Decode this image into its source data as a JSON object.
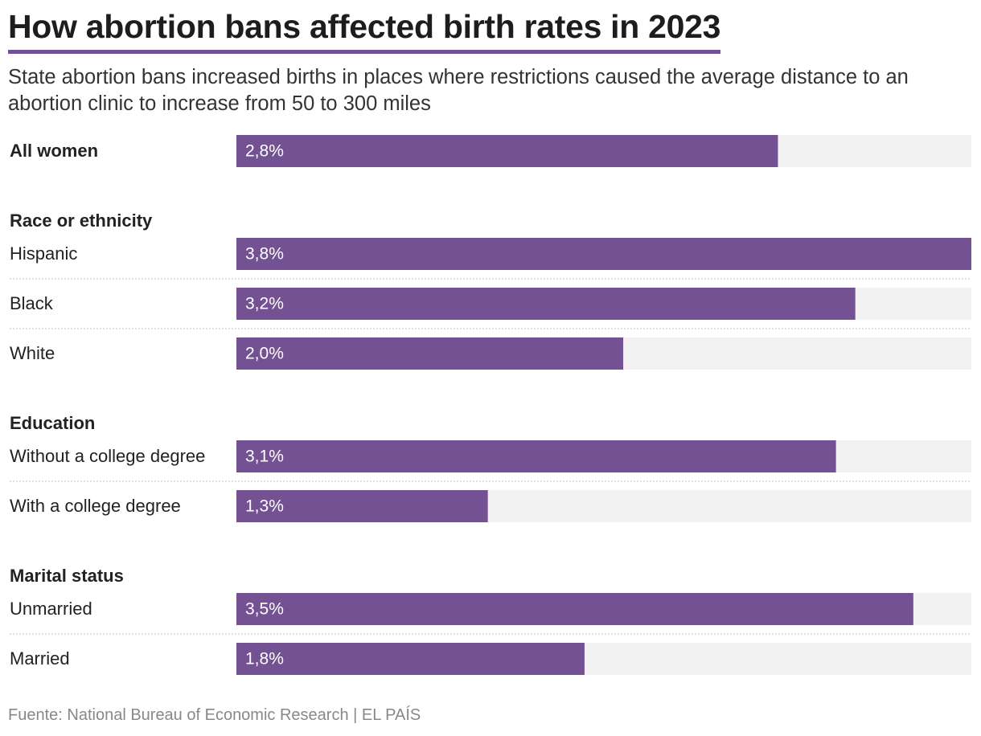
{
  "chart_data": {
    "type": "bar",
    "title": "How abortion bans affected birth rates in 2023",
    "subtitle": "State abortion bans increased births in places where restrictions caused the average distance to an abortion clinic to increase from 50 to 300 miles",
    "source": "Fuente: National Bureau of Economic Research | EL PAÍS",
    "color": "#735192",
    "track_color": "#f2f2f2",
    "xlim": [
      0,
      3.8
    ],
    "groups": [
      {
        "categories": [
          "All women"
        ],
        "values": [
          2.8
        ],
        "value_labels": [
          "2,8%"
        ]
      },
      {
        "name": "Race or ethnicity",
        "categories": [
          "Hispanic",
          "Black",
          "White"
        ],
        "values": [
          3.8,
          3.2,
          2.0
        ],
        "value_labels": [
          "3,8%",
          "3,2%",
          "2,0%"
        ]
      },
      {
        "name": "Education",
        "categories": [
          "Without a college degree",
          "With a college degree"
        ],
        "values": [
          3.1,
          1.3
        ],
        "value_labels": [
          "3,1%",
          "1,3%"
        ]
      },
      {
        "name": "Marital status",
        "categories": [
          "Unmarried",
          "Married"
        ],
        "values": [
          3.5,
          1.8
        ],
        "value_labels": [
          "3,5%",
          "1,8%"
        ]
      }
    ]
  }
}
